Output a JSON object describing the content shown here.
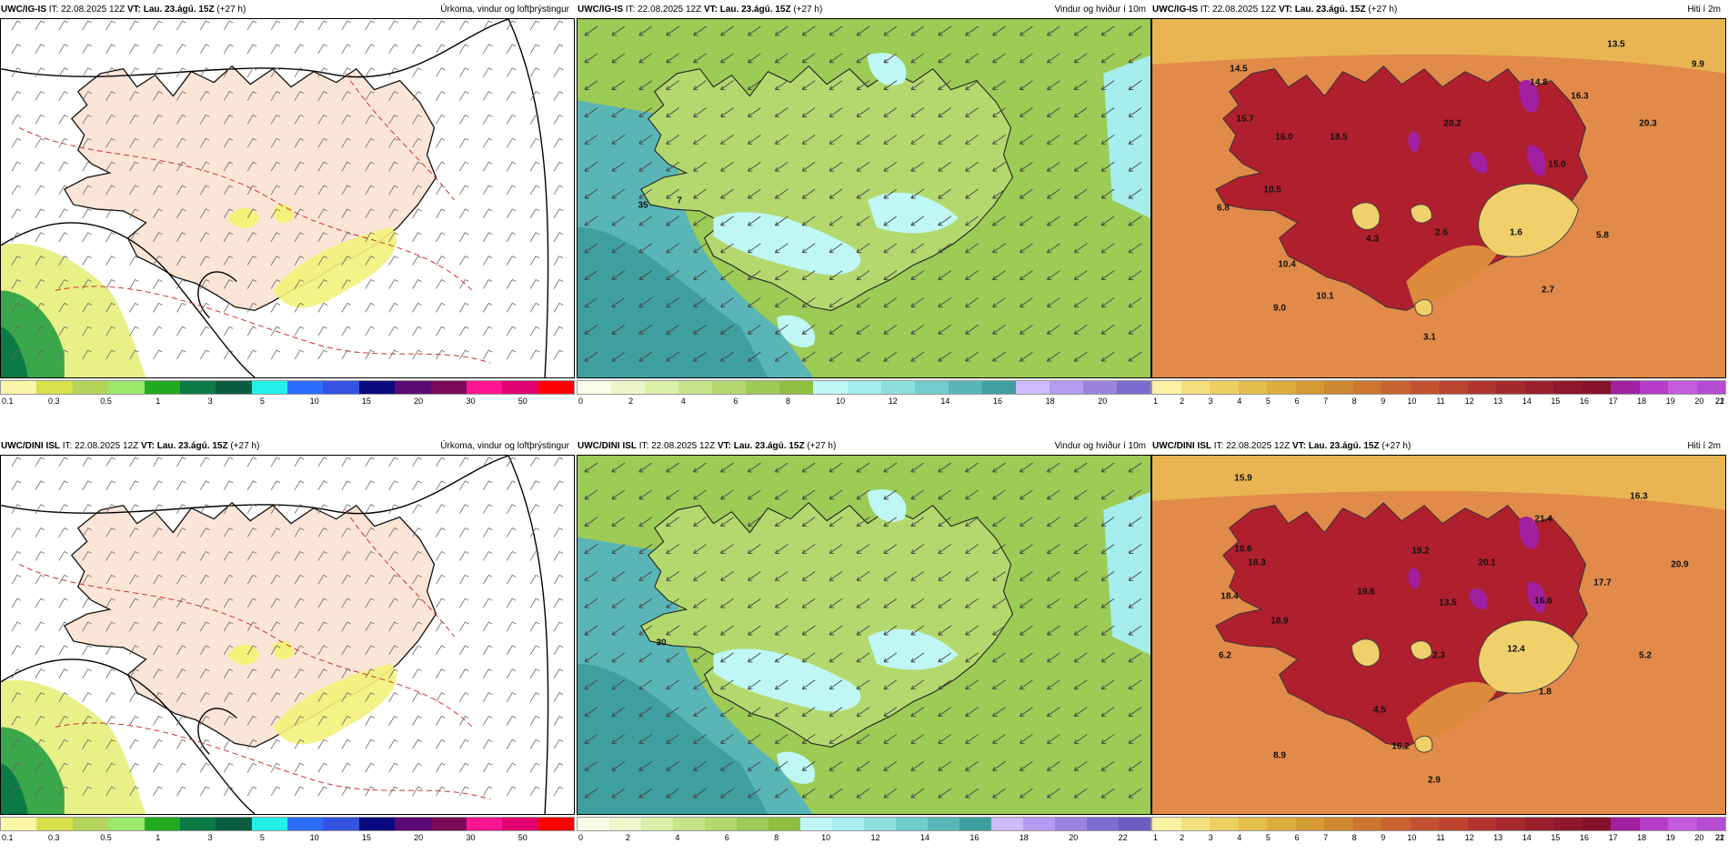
{
  "panels": [
    {
      "id": "r1c1",
      "model": "UWC/IG-IS",
      "it": "IT: 22.08.2025 12Z",
      "vt_label": "VT:",
      "vt": "Lau. 23.ágú. 15Z",
      "lead": "(+27 h)",
      "title": "Úrkoma, vindur og loftþrýstingur",
      "bar_colors": [
        "#fbf6a8",
        "#d8e04a",
        "#b3d35a",
        "#9be86a",
        "#22aa22",
        "#0b7a44",
        "#0a5c40",
        "#22f0e8",
        "#2b6dff",
        "#3453e0",
        "#0a0a80",
        "#5a0a72",
        "#7a0a5a",
        "#ff1493",
        "#e00070",
        "#ff0000"
      ],
      "ticks": [
        "0.1",
        "0.3",
        "0.5",
        "1",
        "3",
        "5",
        "10",
        "15",
        "20",
        "30",
        "50"
      ],
      "values": []
    },
    {
      "id": "r1c2",
      "model": "UWC/IG-IS",
      "it": "IT: 22.08.2025 12Z",
      "vt_label": "VT:",
      "vt": "Lau. 23.ágú. 15Z",
      "lead": "(+27 h)",
      "title": "Vindur og hviður í 10m",
      "bar_colors": [
        "#fbfde8",
        "#edf6c8",
        "#dcefa8",
        "#c8e48a",
        "#b3d96e",
        "#9ccb56",
        "#8fbf40",
        "#bff7f7",
        "#a6eded",
        "#8ddede",
        "#73cccc",
        "#5ab6b6",
        "#3f9f9f",
        "#cdbbff",
        "#b39bf0",
        "#9a84e0",
        "#7d6cd0"
      ],
      "ticks": [
        "0",
        "2",
        "4",
        "6",
        "8",
        "10",
        "12",
        "14",
        "16",
        "18",
        "20"
      ],
      "values": [
        "35",
        "7"
      ]
    },
    {
      "id": "r1c3",
      "model": "UWC/IG-IS",
      "it": "IT: 22.08.2025 12Z",
      "vt_label": "VT:",
      "vt": "Lau. 23.ágú. 15Z",
      "lead": "(+27 h)",
      "title": "Hiti í 2m",
      "bar_colors": [
        "#fbf1a3",
        "#f4e07d",
        "#ecd062",
        "#e4bf4d",
        "#dcad3d",
        "#d49a33",
        "#cf8830",
        "#cb7530",
        "#c8632f",
        "#c2522f",
        "#bb4430",
        "#b03530",
        "#a52a2e",
        "#9a202c",
        "#8f172a",
        "#861128",
        "#a020a0",
        "#b43cc8",
        "#c45adc",
        "#b44cd2"
      ],
      "ticks": [
        "1",
        "2",
        "3",
        "4",
        "5",
        "6",
        "7",
        "8",
        "9",
        "10",
        "11",
        "12",
        "13",
        "14",
        "15",
        "16",
        "17",
        "18",
        "19",
        "20",
        "21",
        "22"
      ],
      "values": [
        "14.5",
        "13.5",
        "9.9",
        "14.8",
        "16.3",
        "15.7",
        "16.0",
        "18.5",
        "20.2",
        "20.3",
        "15.0",
        "10.5",
        "6.8",
        "4.3",
        "2.6",
        "1.6",
        "5.8",
        "10.4",
        "10.1",
        "9.0",
        "2.7",
        "3.1"
      ]
    },
    {
      "id": "r2c1",
      "model": "UWC/DINI ISL",
      "it": "IT: 22.08.2025 12Z",
      "vt_label": "VT:",
      "vt": "Lau. 23.ágú. 15Z",
      "lead": "(+27 h)",
      "title": "Úrkoma, vindur og loftþrýstingur",
      "bar_colors": [
        "#fbf6a8",
        "#d8e04a",
        "#b3d35a",
        "#9be86a",
        "#22aa22",
        "#0b7a44",
        "#0a5c40",
        "#22f0e8",
        "#2b6dff",
        "#3453e0",
        "#0a0a80",
        "#5a0a72",
        "#7a0a5a",
        "#ff1493",
        "#e00070",
        "#ff0000"
      ],
      "ticks": [
        "0.1",
        "0.3",
        "0.5",
        "1",
        "3",
        "5",
        "10",
        "15",
        "20",
        "30",
        "50"
      ],
      "values": []
    },
    {
      "id": "r2c2",
      "model": "UWC/DINI ISL",
      "it": "IT: 22.08.2025 12Z",
      "vt_label": "VT:",
      "vt": "Lau. 23.ágú. 15Z",
      "lead": "(+27 h)",
      "title": "Vindur og hviður í 10m",
      "bar_colors": [
        "#fbfde8",
        "#edf6c8",
        "#dcefa8",
        "#c8e48a",
        "#b3d96e",
        "#9ccb56",
        "#8fbf40",
        "#bff7f7",
        "#a6eded",
        "#8ddede",
        "#73cccc",
        "#5ab6b6",
        "#3f9f9f",
        "#cdbbff",
        "#b39bf0",
        "#9a84e0",
        "#7d6cd0",
        "#6a5cc0"
      ],
      "ticks": [
        "0",
        "2",
        "4",
        "6",
        "8",
        "10",
        "12",
        "14",
        "16",
        "18",
        "20",
        "22"
      ],
      "values": [
        "30"
      ]
    },
    {
      "id": "r2c3",
      "model": "UWC/DINI ISL",
      "it": "IT: 22.08.2025 12Z",
      "vt_label": "VT:",
      "vt": "Lau. 23.ágú. 15Z",
      "lead": "(+27 h)",
      "title": "Hiti í 2m",
      "bar_colors": [
        "#fbf1a3",
        "#f4e07d",
        "#ecd062",
        "#e4bf4d",
        "#dcad3d",
        "#d49a33",
        "#cf8830",
        "#cb7530",
        "#c8632f",
        "#c2522f",
        "#bb4430",
        "#b03530",
        "#a52a2e",
        "#9a202c",
        "#8f172a",
        "#861128",
        "#a020a0",
        "#b43cc8",
        "#c45adc",
        "#b44cd2"
      ],
      "ticks": [
        "1",
        "2",
        "3",
        "4",
        "5",
        "6",
        "7",
        "8",
        "9",
        "10",
        "11",
        "12",
        "13",
        "14",
        "15",
        "16",
        "17",
        "18",
        "19",
        "20",
        "21",
        "22"
      ],
      "values": [
        "15.9",
        "16.3",
        "21.4",
        "10.6",
        "18.3",
        "19.2",
        "20.1",
        "17.7",
        "20.9",
        "19.6",
        "13.5",
        "16.6",
        "18.4",
        "18.9",
        "12.4",
        "6.2",
        "2.3",
        "5.2",
        "4.5",
        "1.8",
        "8.9",
        "16.2",
        "2.9"
      ]
    }
  ]
}
